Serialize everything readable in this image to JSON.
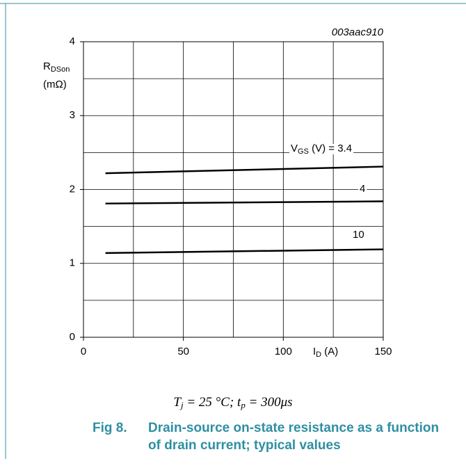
{
  "chart_data": {
    "type": "line",
    "code": "003aac910",
    "y_label": {
      "main": "R",
      "sub": "DSon",
      "unit": "(mΩ)"
    },
    "x_label": {
      "main": "I",
      "sub": "D",
      "unit": " (A)"
    },
    "series_label_prefix": {
      "main": "V",
      "sub": "GS",
      "rest": " (V) = "
    },
    "x": [
      11,
      150
    ],
    "series": [
      {
        "name": "3.4",
        "color": "#000000",
        "values": [
          2.22,
          2.31
        ]
      },
      {
        "name": "4",
        "color": "#000000",
        "values": [
          1.81,
          1.84
        ]
      },
      {
        "name": "10",
        "color": "#000000",
        "values": [
          1.14,
          1.19
        ]
      }
    ],
    "xlim": [
      0,
      150
    ],
    "ylim": [
      0,
      4
    ],
    "xticks": [
      0,
      50,
      100,
      150
    ],
    "yticks": [
      0,
      1,
      2,
      3,
      4
    ],
    "xgrid": [
      0,
      25,
      50,
      75,
      100,
      125,
      150
    ],
    "ygrid": [
      0,
      0.5,
      1,
      1.5,
      2,
      2.5,
      3,
      3.5,
      4
    ],
    "grid": true,
    "condition": [
      "T",
      "j",
      " = 25 °C; t",
      "p",
      " = 300μs"
    ],
    "figure_number": "Fig 8.",
    "caption": [
      "Drain-source on-state resistance as a function",
      "of drain current; typical values"
    ]
  }
}
